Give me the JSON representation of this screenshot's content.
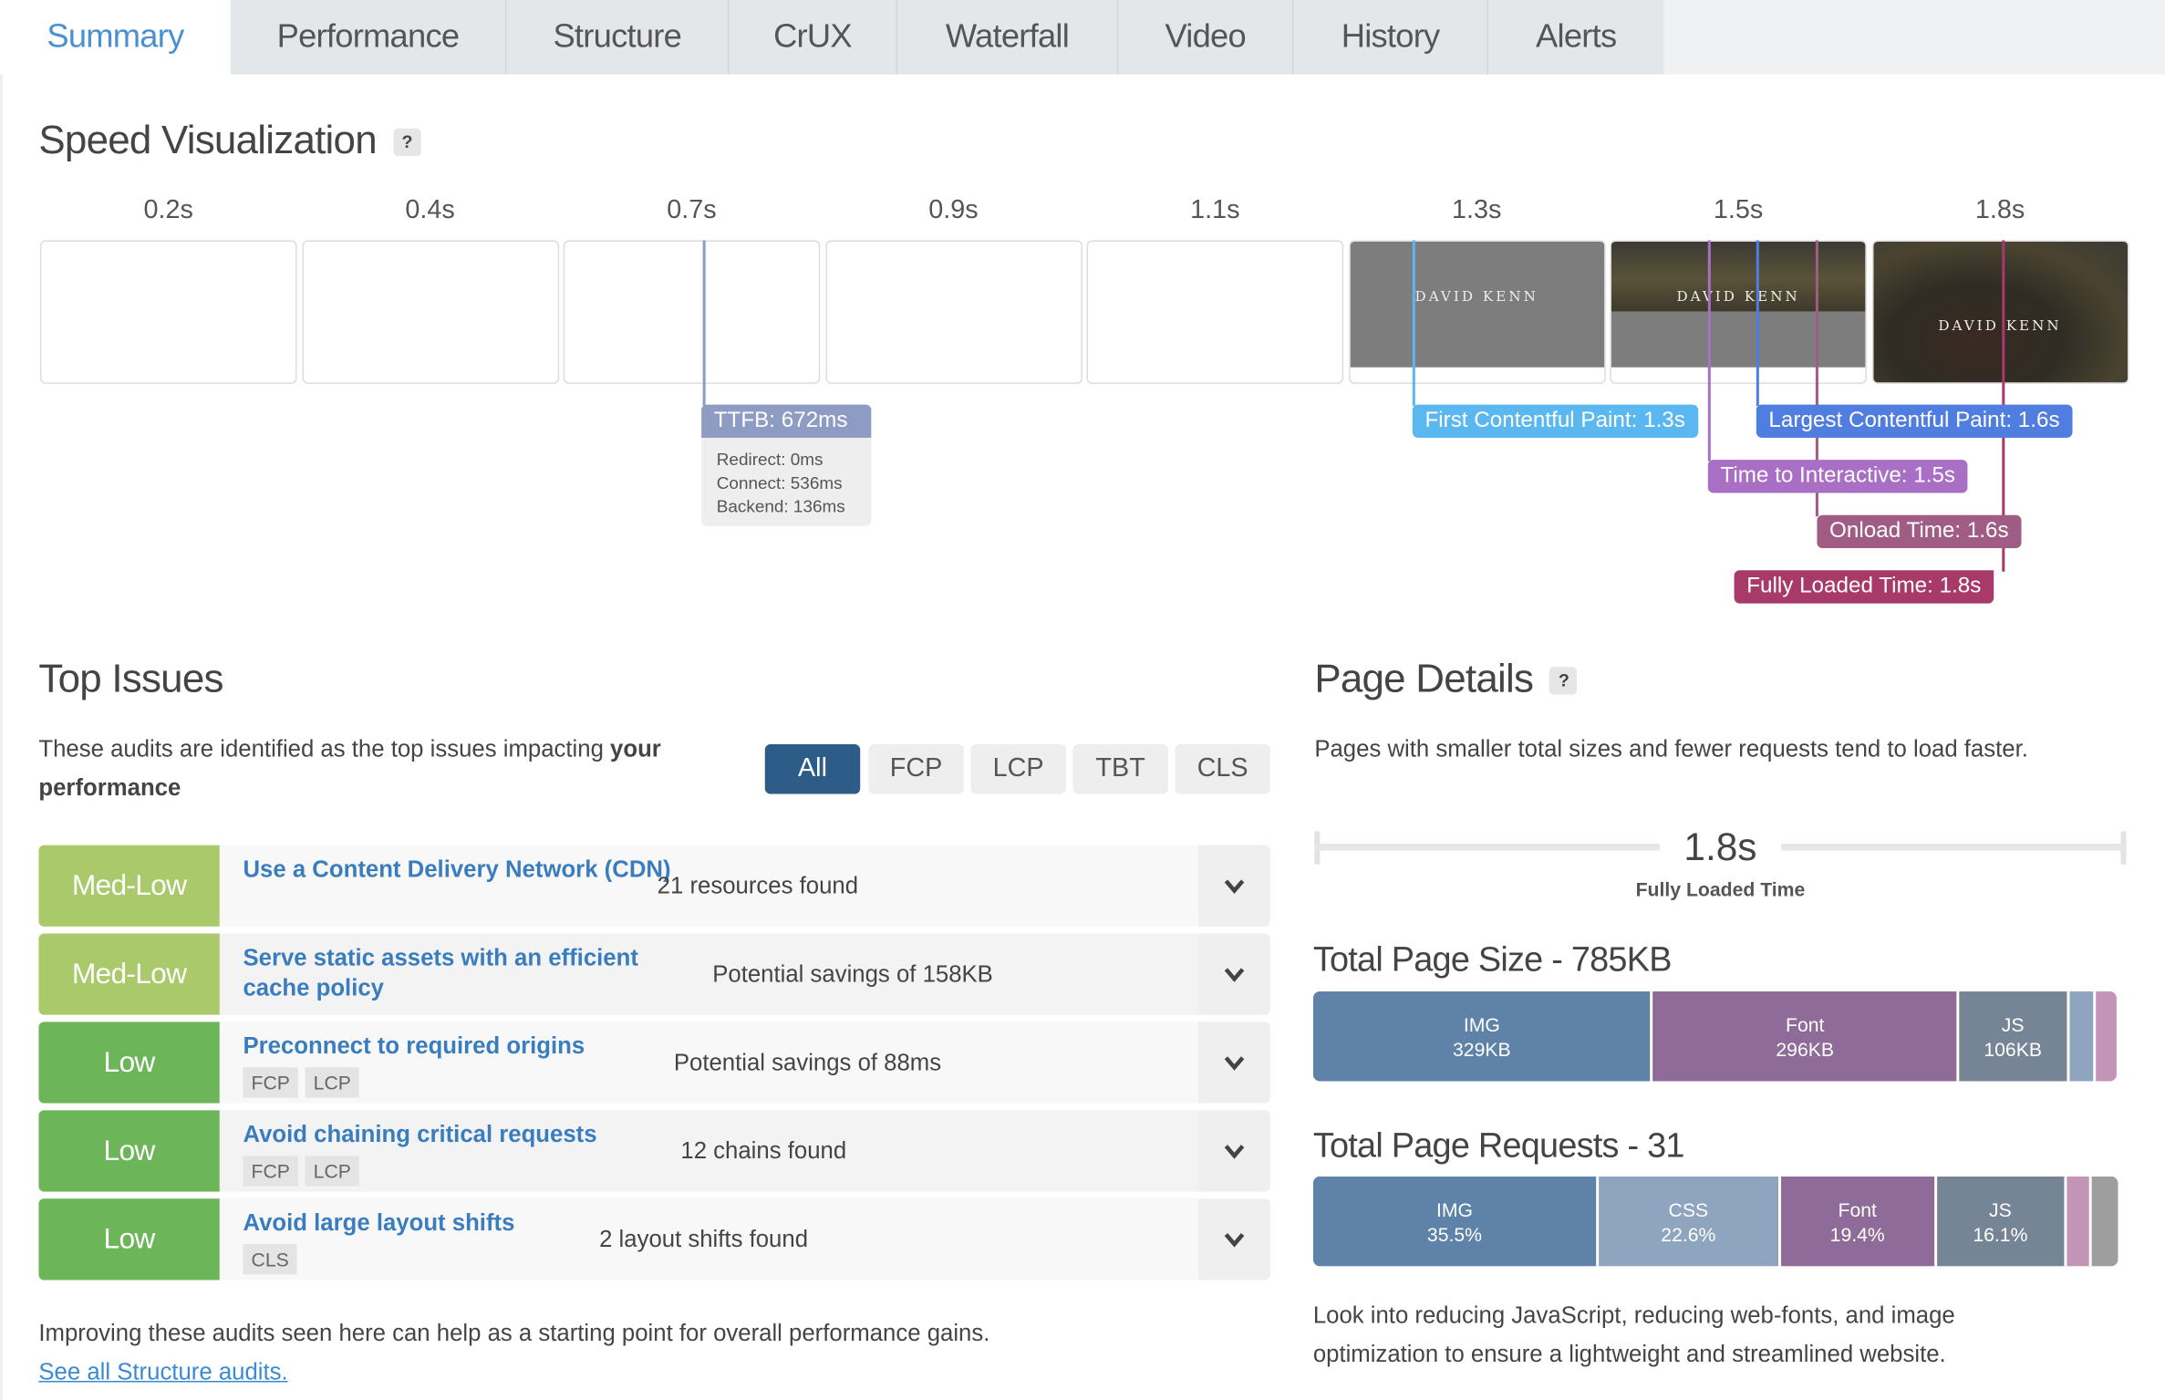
{
  "tabs": [
    "Summary",
    "Performance",
    "Structure",
    "CrUX",
    "Waterfall",
    "Video",
    "History",
    "Alerts"
  ],
  "speed": {
    "title": "Speed Visualization",
    "help": "?",
    "frames": [
      "0.2s",
      "0.4s",
      "0.7s",
      "0.9s",
      "1.1s",
      "1.3s",
      "1.5s",
      "1.8s"
    ],
    "screenshot_text": "DAVID KENN",
    "ttfb": {
      "label": "TTFB: 672ms",
      "redirect": "Redirect: 0ms",
      "connect": "Connect: 536ms",
      "backend": "Backend: 136ms"
    },
    "markers": {
      "fcp": "First Contentful Paint: 1.3s",
      "lcp": "Largest Contentful Paint: 1.6s",
      "tti": "Time to Interactive: 1.5s",
      "onload": "Onload Time: 1.6s",
      "fully": "Fully Loaded Time: 1.8s"
    },
    "colors": {
      "ttfb": "#8e9cc3",
      "fcp": "#5bb7ef",
      "lcp": "#4f7de0",
      "tti": "#a96fc5",
      "onload": "#a05c85",
      "fully": "#a83a6a"
    }
  },
  "issues": {
    "title": "Top Issues",
    "desc_a": "These audits are identified as the top issues impacting ",
    "desc_b": "your performance",
    ".": ".",
    "filters": [
      "All",
      "FCP",
      "LCP",
      "TBT",
      "CLS"
    ],
    "rows": [
      {
        "impact": "Med-Low",
        "title": "Use a Content Delivery Network (CDN)",
        "info": "21 resources found",
        "tags": []
      },
      {
        "impact": "Med-Low",
        "title": "Serve static assets with an efficient cache policy",
        "info": "Potential savings of 158KB",
        "tags": []
      },
      {
        "impact": "Low",
        "title": "Preconnect to required origins",
        "info": "Potential savings of 88ms",
        "tags": [
          "FCP",
          "LCP"
        ]
      },
      {
        "impact": "Low",
        "title": "Avoid chaining critical requests",
        "info": "12 chains found",
        "tags": [
          "FCP",
          "LCP"
        ]
      },
      {
        "impact": "Low",
        "title": "Avoid large layout shifts",
        "info": "2 layout shifts found",
        "tags": [
          "CLS"
        ]
      }
    ],
    "footer": "Improving these audits seen here can help as a starting point for overall performance gains.",
    "link": "See all Structure audits."
  },
  "details": {
    "title": "Page Details",
    "help": "?",
    "desc": "Pages with smaller total sizes and fewer requests tend to load faster.",
    "fully_value": "1.8s",
    "fully_label": "Fully Loaded Time",
    "size_title": "Total Page Size - 785KB",
    "size": [
      {
        "name": "IMG",
        "value": "329KB",
        "kb": 329,
        "color": "#5f82a8"
      },
      {
        "name": "Font",
        "value": "296KB",
        "kb": 296,
        "color": "#8e6b98"
      },
      {
        "name": "JS",
        "value": "106KB",
        "kb": 106,
        "color": "#768596"
      },
      {
        "name": "",
        "value": "",
        "kb": 26,
        "color": "#8fa5bf"
      },
      {
        "name": "",
        "value": "",
        "kb": 20,
        "color": "#c494b6"
      }
    ],
    "req_title": "Total Page Requests - 31",
    "requests": [
      {
        "name": "IMG",
        "value": "35.5%",
        "pct": 35.5,
        "color": "#5f82a8"
      },
      {
        "name": "CSS",
        "value": "22.6%",
        "pct": 22.6,
        "color": "#8fa5bf"
      },
      {
        "name": "Font",
        "value": "19.4%",
        "pct": 19.4,
        "color": "#8e6b98"
      },
      {
        "name": "JS",
        "value": "16.1%",
        "pct": 16.1,
        "color": "#768596"
      },
      {
        "name": "",
        "value": "",
        "pct": 3.2,
        "color": "#c494b6"
      },
      {
        "name": "",
        "value": "",
        "pct": 3.2,
        "color": "#9e9e9e"
      }
    ],
    "bottom": "Look into reducing JavaScript, reducing web-fonts, and image optimization to ensure a lightweight and streamlined website."
  }
}
